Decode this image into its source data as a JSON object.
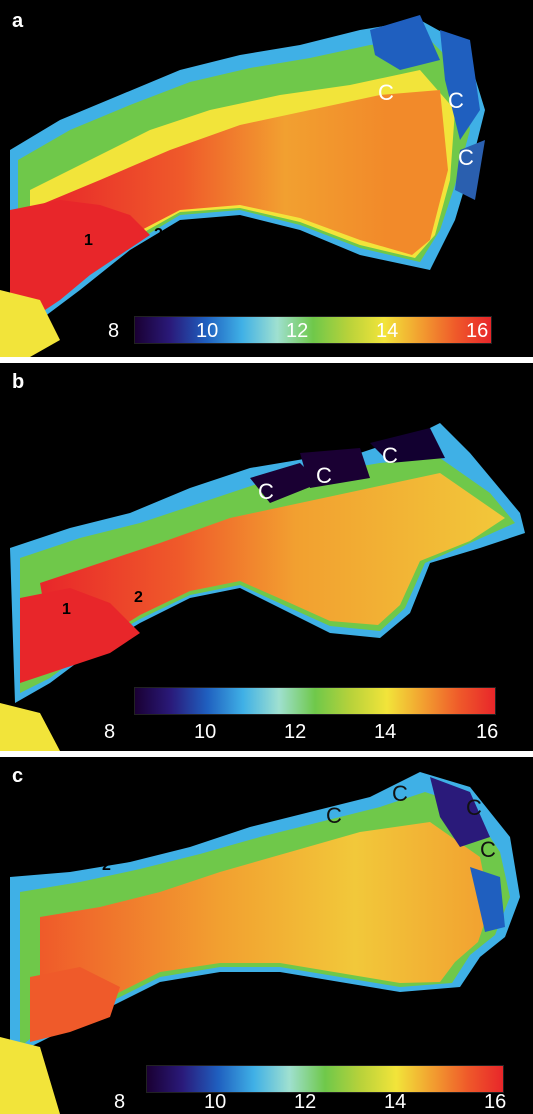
{
  "panels": [
    {
      "letter": "a",
      "marks_c": [
        "C",
        "C",
        "C"
      ],
      "marks_num": [
        "1",
        "2"
      ],
      "colorbar": {
        "ticks": [
          "8",
          "10",
          "12",
          "14",
          "16"
        ]
      }
    },
    {
      "letter": "b",
      "marks_c": [
        "C",
        "C",
        "C"
      ],
      "marks_num": [
        "1",
        "2"
      ],
      "colorbar": {
        "ticks": [
          "8",
          "10",
          "12",
          "14",
          "16"
        ]
      }
    },
    {
      "letter": "c",
      "marks_c": [
        "C",
        "C",
        "C",
        "C"
      ],
      "marks_num": [
        "2"
      ],
      "colorbar": {
        "ticks": [
          "8",
          "10",
          "12",
          "14",
          "16"
        ]
      }
    }
  ],
  "colors": {
    "background": "#000000",
    "scale": [
      "#1a0033",
      "#2a1a7a",
      "#1f5fbf",
      "#3fb0e6",
      "#9fe0d0",
      "#6fc84a",
      "#b8d23a",
      "#f2e43a",
      "#f2a030",
      "#ef5a2a",
      "#e8262a"
    ]
  }
}
